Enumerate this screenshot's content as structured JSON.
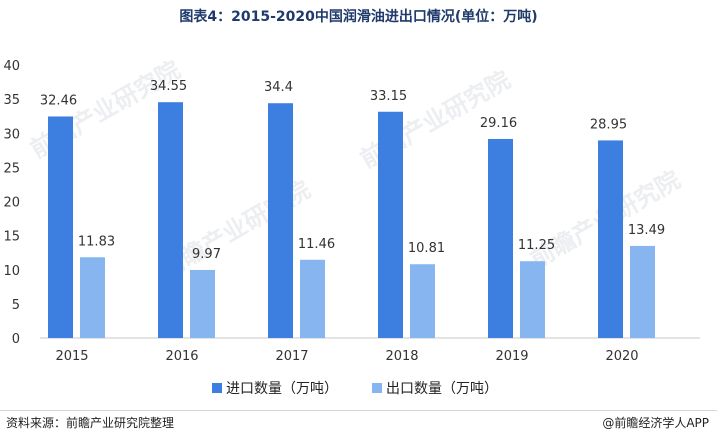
{
  "title": "图表4：2015-2020中国润滑油进出口情况(单位：万吨)",
  "source": "资料来源：前瞻产业研究院整理",
  "brand": "@前瞻经济学人APP",
  "watermark": "前瞻产业研究院",
  "colors": {
    "import": "#3d7fe0",
    "export": "#86b5f0",
    "axis": "#c8c8c8",
    "grid": "#e4e4e4"
  },
  "chart_data": {
    "type": "bar",
    "categories": [
      "2015",
      "2016",
      "2017",
      "2018",
      "2019",
      "2020"
    ],
    "series": [
      {
        "name": "进口数量（万吨）",
        "values": [
          32.46,
          34.55,
          34.4,
          33.15,
          29.16,
          28.95
        ]
      },
      {
        "name": "出口数量（万吨）",
        "values": [
          11.83,
          9.97,
          11.46,
          10.81,
          11.25,
          13.49
        ]
      }
    ],
    "value_labels": [
      [
        "32.46",
        "34.55",
        "34.4",
        "33.15",
        "29.16",
        "28.95"
      ],
      [
        "11.83",
        "9.97",
        "11.46",
        "10.81",
        "11.25",
        "13.49"
      ]
    ],
    "ylim": [
      0,
      40
    ],
    "yticks": [
      "0",
      "5",
      "10",
      "15",
      "20",
      "25",
      "30",
      "35",
      "40"
    ],
    "legend_position": "bottom",
    "grid": false
  }
}
